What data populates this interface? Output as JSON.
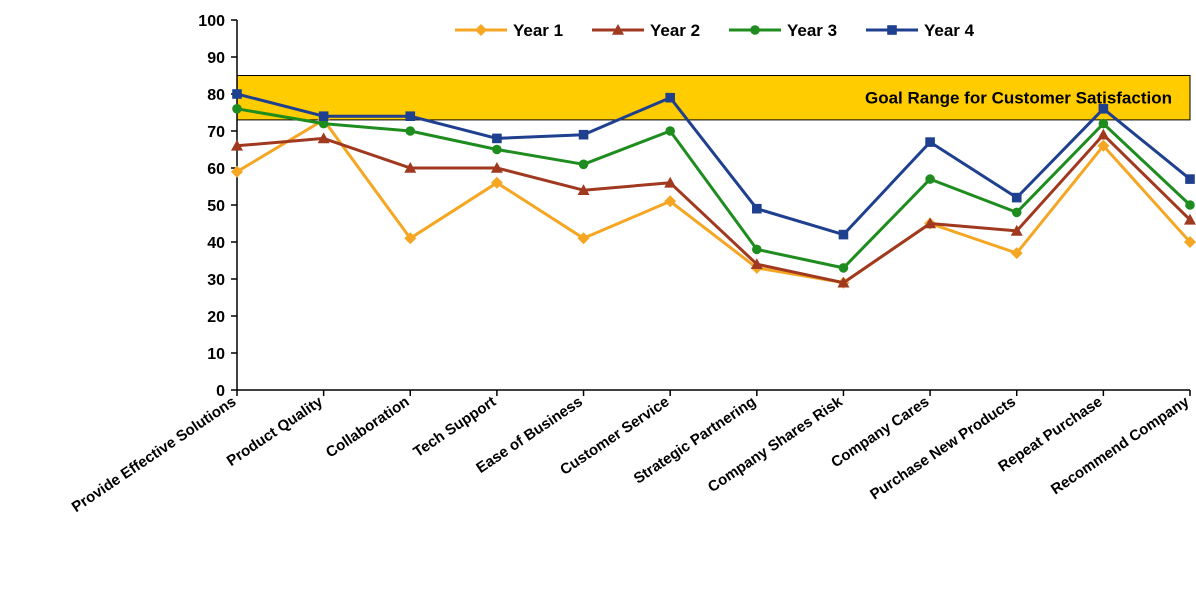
{
  "chart_data": {
    "type": "line",
    "title": "",
    "xlabel": "",
    "ylabel": "",
    "ylim": [
      0,
      100
    ],
    "yticks": [
      0,
      10,
      20,
      30,
      40,
      50,
      60,
      70,
      80,
      90,
      100
    ],
    "grid": false,
    "legend_position": "top",
    "categories": [
      "Provide Effective Solutions",
      "Product Quality",
      "Collaboration",
      "Tech Support",
      "Ease of Business",
      "Customer Service",
      "Strategic Partnering",
      "Company Shares Risk",
      "Company Cares",
      "Purchase New Products",
      "Repeat Purchase",
      "Recommend Company"
    ],
    "series": [
      {
        "name": "Year 1",
        "color": "#F5A623",
        "marker": "diamond",
        "values": [
          59,
          73,
          41,
          56,
          41,
          51,
          33,
          29,
          45,
          37,
          66,
          40
        ]
      },
      {
        "name": "Year 2",
        "color": "#A0391F",
        "marker": "triangle",
        "values": [
          66,
          68,
          60,
          60,
          54,
          56,
          34,
          29,
          45,
          43,
          69,
          46
        ]
      },
      {
        "name": "Year 3",
        "color": "#1E8C1E",
        "marker": "circle",
        "values": [
          76,
          72,
          70,
          65,
          61,
          70,
          38,
          33,
          57,
          48,
          72,
          50
        ]
      },
      {
        "name": "Year 4",
        "color": "#1F3F8F",
        "marker": "square",
        "values": [
          80,
          74,
          74,
          68,
          69,
          79,
          49,
          42,
          67,
          52,
          76,
          57
        ]
      }
    ],
    "goal_band": {
      "label": "Goal Range for Customer Satisfaction",
      "from": 73,
      "to": 85,
      "color": "#FFCC00"
    }
  }
}
